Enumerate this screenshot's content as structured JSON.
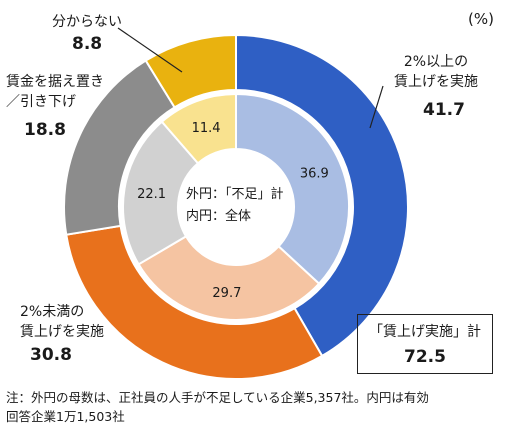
{
  "chart_data": {
    "type": "pie",
    "unit": "(%)",
    "center_label_lines": [
      "外円：「不足」計",
      "内円：全体"
    ],
    "categories": [
      {
        "label_lines": [
          "2%以上の",
          "賃上げを実施"
        ],
        "label": "2%以上の賃上げを実施"
      },
      {
        "label_lines": [
          "2%未満の",
          "賃上げを実施"
        ],
        "label": "2%未満の賃上げを実施"
      },
      {
        "label_lines": [
          "賃金を据え置き",
          "／引き下げ"
        ],
        "label": "賃金を据え置き／引き下げ"
      },
      {
        "label_lines": [
          "分からない"
        ],
        "label": "分からない"
      }
    ],
    "series": [
      {
        "name": "外円：「不足」計",
        "ring": "outer",
        "values": [
          41.7,
          30.8,
          18.8,
          8.8
        ],
        "value_labels": [
          "41.7",
          "30.8",
          "18.8",
          "8.8"
        ],
        "colors": [
          "#2f5fc4",
          "#e8711c",
          "#8c8c8c",
          "#e9b20f"
        ]
      },
      {
        "name": "内円：全体",
        "ring": "inner",
        "values": [
          36.9,
          29.7,
          22.1,
          11.4
        ],
        "value_labels": [
          "36.9",
          "29.7",
          "22.1",
          "11.4"
        ],
        "colors": [
          "#a9bde3",
          "#f5c4a2",
          "#d1d1d1",
          "#f9e28f"
        ]
      }
    ],
    "summary": {
      "title": "「賃上げ実施」計",
      "value": "72.5"
    },
    "note_lines": [
      "注：外円の母数は、正社員の人手が不足している企業5,357社。内円は有効",
      "回答企業1万1,503社"
    ]
  }
}
